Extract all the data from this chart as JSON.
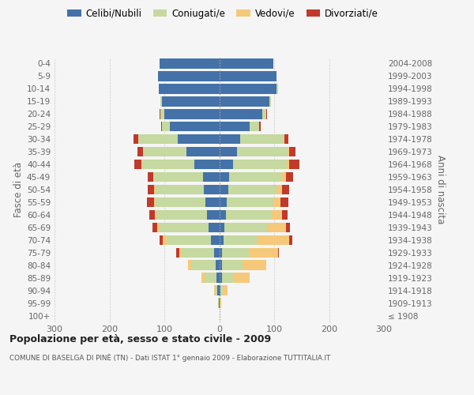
{
  "age_groups": [
    "100+",
    "95-99",
    "90-94",
    "85-89",
    "80-84",
    "75-79",
    "70-74",
    "65-69",
    "60-64",
    "55-59",
    "50-54",
    "45-49",
    "40-44",
    "35-39",
    "30-34",
    "25-29",
    "20-24",
    "15-19",
    "10-14",
    "5-9",
    "0-4"
  ],
  "birth_years": [
    "≤ 1908",
    "1909-1913",
    "1914-1918",
    "1919-1923",
    "1924-1928",
    "1929-1933",
    "1934-1938",
    "1939-1943",
    "1944-1948",
    "1949-1953",
    "1954-1958",
    "1959-1963",
    "1964-1968",
    "1969-1973",
    "1974-1978",
    "1979-1983",
    "1984-1988",
    "1989-1993",
    "1994-1998",
    "1999-2003",
    "2004-2008"
  ],
  "males_celibe": [
    0,
    1,
    3,
    5,
    7,
    10,
    15,
    20,
    22,
    25,
    28,
    30,
    45,
    60,
    75,
    90,
    100,
    105,
    110,
    112,
    108
  ],
  "males_coniugato": [
    0,
    1,
    5,
    22,
    42,
    58,
    80,
    88,
    92,
    92,
    88,
    88,
    95,
    78,
    72,
    14,
    7,
    2,
    0,
    0,
    0
  ],
  "males_vedovo": [
    0,
    0,
    2,
    5,
    8,
    5,
    8,
    5,
    3,
    2,
    2,
    2,
    2,
    1,
    1,
    0,
    0,
    0,
    0,
    0,
    0
  ],
  "males_divorziato": [
    0,
    0,
    0,
    0,
    0,
    5,
    5,
    8,
    10,
    12,
    12,
    10,
    12,
    10,
    8,
    2,
    1,
    0,
    0,
    0,
    0
  ],
  "females_nubile": [
    0,
    1,
    2,
    5,
    5,
    5,
    8,
    10,
    12,
    14,
    16,
    18,
    25,
    32,
    38,
    55,
    78,
    92,
    105,
    105,
    98
  ],
  "females_coniugata": [
    0,
    0,
    5,
    22,
    38,
    50,
    62,
    78,
    83,
    85,
    88,
    95,
    98,
    92,
    78,
    17,
    8,
    2,
    2,
    0,
    0
  ],
  "females_vedova": [
    1,
    2,
    8,
    28,
    42,
    52,
    58,
    33,
    20,
    13,
    10,
    8,
    5,
    3,
    2,
    1,
    0,
    0,
    0,
    0,
    0
  ],
  "females_divorziata": [
    0,
    0,
    0,
    0,
    0,
    2,
    5,
    8,
    10,
    14,
    14,
    14,
    18,
    12,
    8,
    2,
    1,
    0,
    0,
    0,
    0
  ],
  "color_celibe": "#4472a8",
  "color_coniugato": "#c5d9a0",
  "color_vedovo": "#f5c97a",
  "color_divorziato": "#c0392b",
  "legend_labels": [
    "Celibi/Nubili",
    "Coniugati/e",
    "Vedovi/e",
    "Divorziati/e"
  ],
  "title": "Popolazione per età, sesso e stato civile - 2009",
  "subtitle": "COMUNE DI BASELGA DI PINÈ (TN) - Dati ISTAT 1° gennaio 2009 - Elaborazione TUTTITALIA.IT",
  "ylabel_left": "Fasce di età",
  "ylabel_right": "Anni di nascita",
  "xlim": 300,
  "bg_color": "#f5f5f5",
  "grid_color": "#cccccc",
  "bar_height": 0.78
}
